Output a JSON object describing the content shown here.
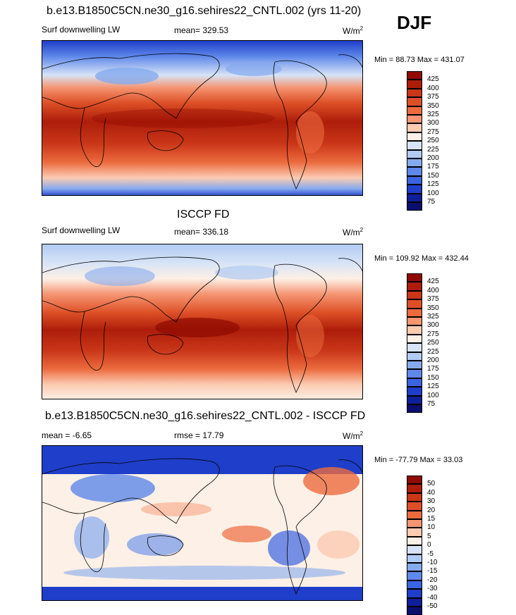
{
  "header": {
    "season": "DJF"
  },
  "panels": [
    {
      "title": "b.e13.B1850C5CN.ne30_g16.sehires22_CNTL.002 (yrs 11-20)",
      "left_label": "Surf downwelling LW",
      "center_label": "mean= 329.53",
      "units": "W/m",
      "units_sup": "2",
      "minmax": "Min =  88.73 Max = 431.07"
    },
    {
      "title": "ISCCP FD",
      "left_label": "Surf downwelling LW",
      "center_label": "mean= 336.18",
      "units": "W/m",
      "units_sup": "2",
      "minmax": "Min = 109.92 Max = 432.44"
    },
    {
      "title": "b.e13.B1850C5CN.ne30_g16.sehires22_CNTL.002 - ISCCP FD",
      "left_label": "mean =  -6.65",
      "center_label": "rmse =  17.79",
      "units": "W/m",
      "units_sup": "2",
      "minmax": "Min = -77.79 Max =  33.03"
    }
  ],
  "chart_data": [
    {
      "type": "heatmap",
      "title": "b.e13.B1850C5CN.ne30_g16.sehires22_CNTL.002 (yrs 11-20)",
      "variable": "Surf downwelling LW",
      "units": "W/m2",
      "mean": 329.53,
      "min": 88.73,
      "max": 431.07,
      "levels": [
        425,
        400,
        375,
        350,
        325,
        300,
        275,
        250,
        225,
        200,
        175,
        150,
        125,
        100,
        75
      ],
      "colors": [
        "#8f0a00",
        "#ad1d0a",
        "#c93618",
        "#dd4f26",
        "#ec6b3e",
        "#f59572",
        "#fbcbb2",
        "#fdf0e6",
        "#d7e4f7",
        "#b1cbf2",
        "#86aaee",
        "#5e88ea",
        "#3b64e1",
        "#1f3ec9",
        "#0e1f9a",
        "#0a0f6e"
      ]
    },
    {
      "type": "heatmap",
      "title": "ISCCP FD",
      "variable": "Surf downwelling LW",
      "units": "W/m2",
      "mean": 336.18,
      "min": 109.92,
      "max": 432.44,
      "levels": [
        425,
        400,
        375,
        350,
        325,
        300,
        275,
        250,
        225,
        200,
        175,
        150,
        125,
        100,
        75
      ],
      "colors": [
        "#8f0a00",
        "#ad1d0a",
        "#c93618",
        "#dd4f26",
        "#ec6b3e",
        "#f59572",
        "#fbcbb2",
        "#fdf0e6",
        "#d7e4f7",
        "#b1cbf2",
        "#86aaee",
        "#5e88ea",
        "#3b64e1",
        "#1f3ec9",
        "#0e1f9a",
        "#0a0f6e"
      ]
    },
    {
      "type": "heatmap",
      "title": "b.e13.B1850C5CN.ne30_g16.sehires22_CNTL.002 - ISCCP FD",
      "units": "W/m2",
      "mean": -6.65,
      "rmse": 17.79,
      "min": -77.79,
      "max": 33.03,
      "levels": [
        50,
        40,
        30,
        20,
        15,
        10,
        5,
        0,
        -5,
        -10,
        -15,
        -20,
        -30,
        -40,
        -50
      ],
      "colors": [
        "#8f0a00",
        "#ad1d0a",
        "#c93618",
        "#dd4f26",
        "#ec6b3e",
        "#f59572",
        "#fbcbb2",
        "#fdf0e6",
        "#d7e4f7",
        "#b1cbf2",
        "#86aaee",
        "#5e88ea",
        "#3b64e1",
        "#1f3ec9",
        "#0e1f9a",
        "#0a0f6e"
      ]
    }
  ]
}
